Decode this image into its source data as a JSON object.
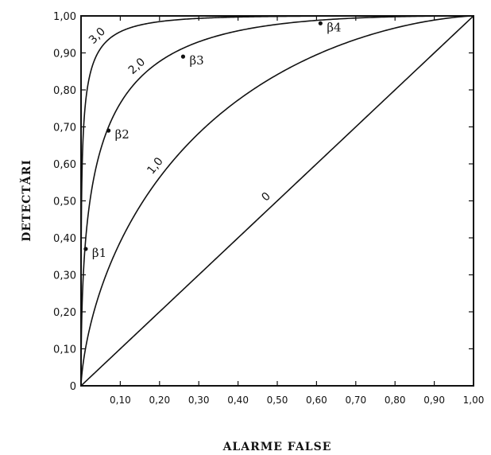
{
  "chart_data": {
    "type": "line",
    "title": "",
    "xlabel": "ALARME FALSE",
    "ylabel": "DETECTĂRI",
    "xlim": [
      0,
      1
    ],
    "ylim": [
      0,
      1
    ],
    "x_ticks": [
      {
        "value": 0.1,
        "label": "0,10"
      },
      {
        "value": 0.2,
        "label": "0,20"
      },
      {
        "value": 0.3,
        "label": "0,30"
      },
      {
        "value": 0.4,
        "label": "0,40"
      },
      {
        "value": 0.5,
        "label": "0,50"
      },
      {
        "value": 0.6,
        "label": "0,60"
      },
      {
        "value": 0.7,
        "label": "0,70"
      },
      {
        "value": 0.8,
        "label": "0,80"
      },
      {
        "value": 0.9,
        "label": "0,90"
      },
      {
        "value": 1.0,
        "label": "1,00"
      }
    ],
    "y_ticks": [
      {
        "value": 0,
        "label": "0"
      },
      {
        "value": 0.1,
        "label": "0,10"
      },
      {
        "value": 0.2,
        "label": "0,20"
      },
      {
        "value": 0.3,
        "label": "0,30"
      },
      {
        "value": 0.4,
        "label": "0,40"
      },
      {
        "value": 0.5,
        "label": "0,50"
      },
      {
        "value": 0.6,
        "label": "0,60"
      },
      {
        "value": 0.7,
        "label": "0,70"
      },
      {
        "value": 0.8,
        "label": "0,80"
      },
      {
        "value": 0.9,
        "label": "0,90"
      },
      {
        "value": 1.0,
        "label": "1,00"
      }
    ],
    "series": [
      {
        "name": "0",
        "d_prime": 0.0,
        "label_at": 0.49
      },
      {
        "name": "1,0",
        "d_prime": 1.0,
        "label_at": 0.21
      },
      {
        "name": "2,0",
        "d_prime": 2.0,
        "label_at": 0.16
      },
      {
        "name": "3,0",
        "d_prime": 3.0,
        "label_at": 0.06
      }
    ],
    "annotations": [
      {
        "label": "β1",
        "x": 0.012,
        "y": 0.37,
        "series": "2,0"
      },
      {
        "label": "β2",
        "x": 0.07,
        "y": 0.69,
        "series": "2,0"
      },
      {
        "label": "β3",
        "x": 0.26,
        "y": 0.89,
        "series": "2,0"
      },
      {
        "label": "β4",
        "x": 0.61,
        "y": 0.98,
        "series": "2,0"
      }
    ],
    "grid": false,
    "legend": "none"
  }
}
